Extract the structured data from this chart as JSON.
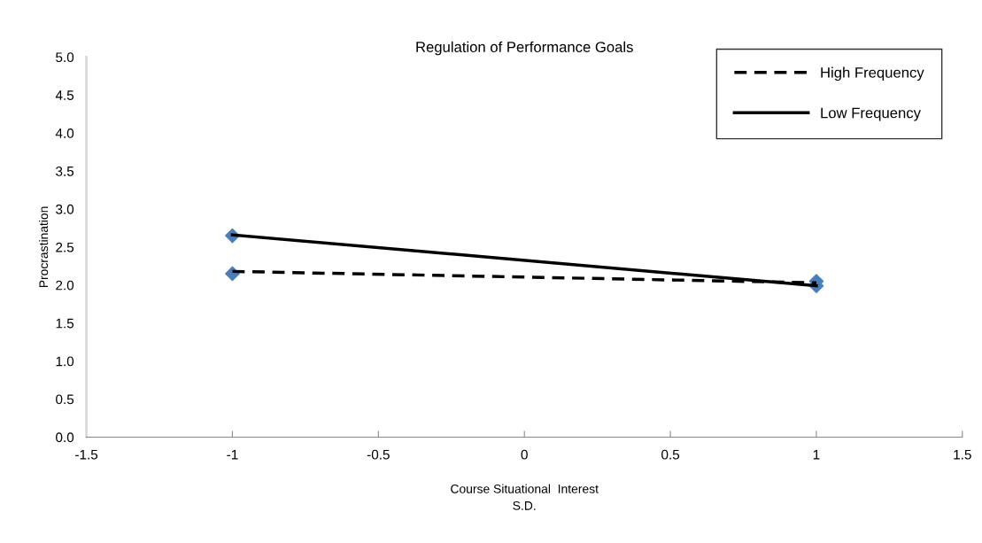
{
  "chart_data": {
    "type": "line",
    "title": "Regulation of Performance Goals",
    "xlabel": "Course Situational  Interest\nS.D.",
    "ylabel": "Procrastination",
    "x": [
      -1,
      1
    ],
    "xlim": [
      -1.5,
      1.5
    ],
    "xticks": [
      {
        "value": -1.5,
        "label": "-1.5"
      },
      {
        "value": -1,
        "label": "-1"
      },
      {
        "value": -0.5,
        "label": "-0.5"
      },
      0,
      0.5,
      1,
      1.5
    ],
    "ylim": [
      0,
      5
    ],
    "yticks": [
      {
        "value": 0,
        "label": "0.0"
      },
      {
        "value": 0.5,
        "label": "0.5"
      },
      {
        "value": 1,
        "label": "1.0"
      },
      {
        "value": 1.5,
        "label": "1.5"
      },
      {
        "value": 2,
        "label": "2.0"
      },
      {
        "value": 2.5,
        "label": "2.5"
      },
      {
        "value": 3,
        "label": "3.0"
      },
      {
        "value": 3.5,
        "label": "3.5"
      },
      {
        "value": 4,
        "label": "4.0"
      },
      {
        "value": 4.5,
        "label": "4.5"
      },
      {
        "value": 5,
        "label": "5.0"
      }
    ],
    "grid": false,
    "legend": "top right",
    "series": [
      {
        "type": "scatter",
        "color": "#4a7ebb",
        "marker": "diamond",
        "values": [
          2.15,
          2.05
        ]
      },
      {
        "type": "scatter",
        "color": "#4a7ebb",
        "marker": "diamond",
        "values": [
          2.65,
          1.99
        ]
      },
      {
        "name": "High Frequency",
        "color": "#000000",
        "line_style": "dashed",
        "values": [
          2.18,
          2.03
        ]
      },
      {
        "name": "Low Frequency",
        "color": "#000000",
        "line_style": "solid",
        "values": [
          2.66,
          1.99
        ]
      }
    ]
  }
}
